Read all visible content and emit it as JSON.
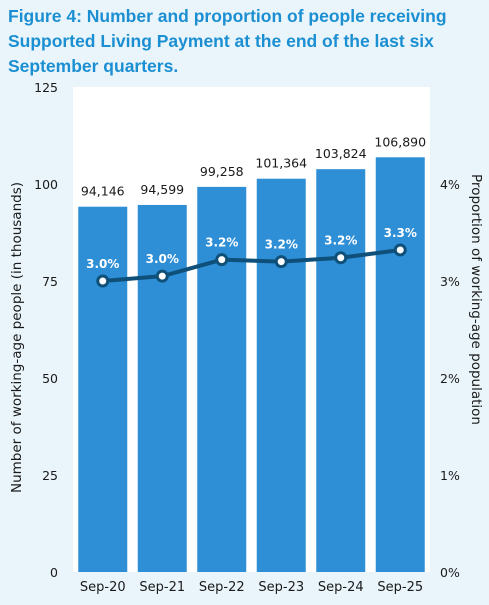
{
  "figure": {
    "title": "Figure 4: Number and proportion of people receiving Supported Living Payment at the end of the last six September quarters."
  },
  "colors": {
    "title": "#1b8fd2",
    "bar": "#2f8fd6",
    "line": "#0e5079",
    "plot_bg": "#ffffff",
    "page_bg": "#eaf5fb"
  },
  "chart_data": {
    "type": "bar",
    "categories": [
      "Sep-20",
      "Sep-21",
      "Sep-22",
      "Sep-23",
      "Sep-24",
      "Sep-25"
    ],
    "series": [
      {
        "type": "bar",
        "axis": "left",
        "values": [
          94146,
          94599,
          99258,
          101364,
          103824,
          106890
        ],
        "value_labels": [
          "94,146",
          "94,599",
          "99,258",
          "101,364",
          "103,824",
          "106,890"
        ]
      },
      {
        "type": "line",
        "axis": "right",
        "values": [
          3.0,
          3.05,
          3.22,
          3.2,
          3.24,
          3.32
        ],
        "value_labels": [
          "3.0%",
          "3.0%",
          "3.2%",
          "3.2%",
          "3.2%",
          "3.3%"
        ]
      }
    ],
    "ylabel": "Number of working-age people (in thousands)",
    "ylabel_right": "Proportion of working-age population",
    "ylim": [
      0,
      125
    ],
    "yticks": [
      "0",
      "25",
      "50",
      "75",
      "100",
      "125"
    ],
    "ylim_right": [
      0,
      5
    ],
    "yticks_right": [
      "0%",
      "1%",
      "2%",
      "3%",
      "4%"
    ],
    "grid": false,
    "legend": "none"
  }
}
